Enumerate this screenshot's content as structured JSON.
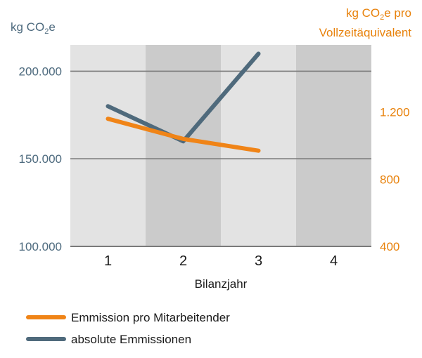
{
  "chart_data": {
    "type": "line",
    "x": [
      1,
      2,
      3,
      4
    ],
    "categories": [
      "1",
      "2",
      "3",
      "4"
    ],
    "xlabel": "Bilanzjahr",
    "y_left": {
      "label_main": "kg CO",
      "label_sub": "2",
      "label_tail": "e",
      "ticks": [
        "100.000",
        "150.000",
        "200.000"
      ],
      "tick_values": [
        100000,
        150000,
        200000
      ],
      "range": [
        100000,
        215000
      ],
      "color": "#4d6a7e"
    },
    "y_right": {
      "label_line1_main": "kg CO",
      "label_line1_sub": "2",
      "label_line1_tail": "e pro",
      "label_line2": "Vollzeitäquivalent",
      "ticks": [
        "400",
        "800",
        "1.200"
      ],
      "tick_values": [
        400,
        800,
        1200
      ],
      "range": [
        400,
        1600
      ],
      "color": "#e8820c"
    },
    "series": [
      {
        "name": "Emmission pro Mitarbeitender",
        "axis": "right",
        "x": [
          1,
          2,
          3
        ],
        "values": [
          1160,
          1040,
          970
        ],
        "color": "#f08417"
      },
      {
        "name": "absolute Emmissionen",
        "axis": "left",
        "x": [
          1,
          2,
          3
        ],
        "values": [
          180000,
          160000,
          210000
        ],
        "color": "#4f6a7c"
      }
    ],
    "band_colors": [
      "#e3e3e3",
      "#cbcbcb"
    ],
    "grid": true,
    "legend_position": "bottom-left"
  }
}
